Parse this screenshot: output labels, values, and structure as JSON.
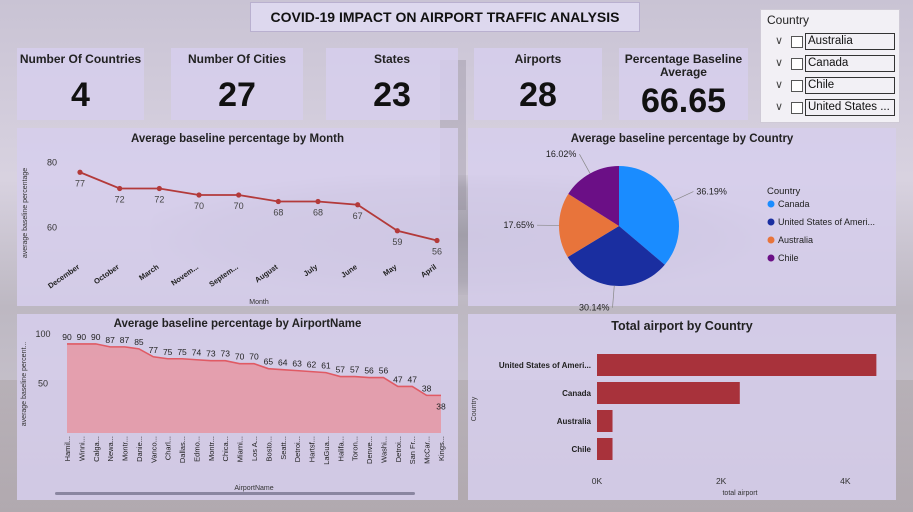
{
  "title": "COVID-19 IMPACT ON AIRPORT TRAFFIC ANALYSIS",
  "cards": [
    {
      "label": "Number Of Countries",
      "value": "4"
    },
    {
      "label": "Number Of Cities",
      "value": "27"
    },
    {
      "label": "States",
      "value": "23"
    },
    {
      "label": "Airports",
      "value": "28"
    },
    {
      "label": "Percentage Baseline Average",
      "value": "66.65"
    }
  ],
  "slicer": {
    "title": "Country",
    "items": [
      "Australia",
      "Canada",
      "Chile",
      "United States ..."
    ]
  },
  "chart_data": [
    {
      "type": "line",
      "title": "Average baseline percentage by Month",
      "xlabel": "Month",
      "ylabel": "average baseline percentage",
      "categories": [
        "December",
        "October",
        "March",
        "Novem...",
        "Septem...",
        "August",
        "July",
        "June",
        "May",
        "April"
      ],
      "values": [
        77,
        72,
        72,
        70,
        70,
        68,
        68,
        67,
        59,
        56
      ],
      "y_ticks": [
        "80",
        "60"
      ],
      "ylim": [
        50,
        82
      ],
      "color": "#b33a3a"
    },
    {
      "type": "pie",
      "title": "Average baseline percentage by Country",
      "legend_title": "Country",
      "labels": [
        "Canada",
        "United States of Ameri...",
        "Australia",
        "Chile"
      ],
      "values": [
        36.19,
        30.14,
        17.65,
        16.02
      ],
      "value_labels": [
        "36.19%",
        "30.14%",
        "17.65%",
        "16.02%"
      ],
      "colors": [
        "#1a8cff",
        "#1a2ea0",
        "#e8743b",
        "#6b0f86"
      ],
      "legend": "right"
    },
    {
      "type": "area",
      "title": "Average baseline percentage by AirportName",
      "xlabel": "AirportName",
      "ylabel": "average baseline percent...",
      "categories": [
        "Hamil...",
        "Winni...",
        "Calga...",
        "Newa...",
        "Montr...",
        "Danie...",
        "Vanco...",
        "Charl...",
        "Dallas...",
        "Edmo...",
        "Montr...",
        "Chica...",
        "Miami...",
        "Los A...",
        "Bosto...",
        "Seatt...",
        "Detroi...",
        "Hartsf...",
        "LaGua...",
        "Halifa...",
        "Toron...",
        "Denve...",
        "Washi...",
        "Detroi...",
        "San Fr...",
        "McCar...",
        "Kings..."
      ],
      "values": [
        90,
        90,
        90,
        87,
        87,
        85,
        77,
        75,
        75,
        74,
        73,
        73,
        70,
        70,
        65,
        64,
        63,
        62,
        61,
        57,
        57,
        56,
        56,
        47,
        47,
        38,
        38
      ],
      "y_ticks": [
        "100",
        "50"
      ],
      "ylim": [
        0,
        100
      ],
      "color": "#f07a80"
    },
    {
      "type": "bar",
      "orientation": "horizontal",
      "title": "Total airport by Country",
      "xlabel": "total airport",
      "ylabel": "Country",
      "categories": [
        "United States of Ameri...",
        "Canada",
        "Australia",
        "Chile"
      ],
      "values": [
        4500,
        2300,
        250,
        250
      ],
      "x_ticks": [
        "0K",
        "2K",
        "4K"
      ],
      "xlim": [
        0,
        4800
      ],
      "color": "#a8323b"
    }
  ]
}
